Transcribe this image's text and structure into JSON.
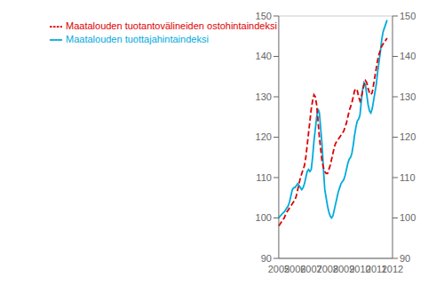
{
  "chart_data": {
    "type": "line",
    "categories": [
      "2005",
      null,
      null,
      null,
      null,
      null,
      null,
      null,
      null,
      null,
      null,
      null,
      "2006",
      null,
      null,
      null,
      null,
      null,
      null,
      null,
      null,
      null,
      null,
      null,
      "2007",
      null,
      null,
      null,
      null,
      null,
      null,
      null,
      null,
      null,
      null,
      null,
      "2008",
      null,
      null,
      null,
      null,
      null,
      null,
      null,
      null,
      null,
      null,
      null,
      "2009",
      null,
      null,
      null,
      null,
      null,
      null,
      null,
      null,
      null,
      null,
      null,
      "2010",
      null,
      null,
      null,
      null,
      null,
      null,
      null,
      null,
      null,
      null,
      null,
      "2011",
      null,
      null,
      null,
      null,
      null,
      null,
      null,
      null,
      null,
      null,
      null,
      "2012"
    ],
    "series": [
      {
        "name": "Maatalouden tuottajahintaindeksi",
        "color": "#00AADD",
        "line_style": "solid",
        "values": [
          100.0,
          100.5,
          100.8,
          101.2,
          101.5,
          102.0,
          102.5,
          103.0,
          104.0,
          105.5,
          107.0,
          107.5,
          107.5,
          108.0,
          108.5,
          108.0,
          107.5,
          107.0,
          107.5,
          108.5,
          110.0,
          111.5,
          112.0,
          111.5,
          112.0,
          115.0,
          119.0,
          122.0,
          125.0,
          127.0,
          126.0,
          122.0,
          118.0,
          112.0,
          107.0,
          105.0,
          103.0,
          101.5,
          100.5,
          100.0,
          100.5,
          102.0,
          103.5,
          105.0,
          106.5,
          107.5,
          108.5,
          109.0,
          109.5,
          110.5,
          112.0,
          113.5,
          114.5,
          115.0,
          116.0,
          118.0,
          120.5,
          122.5,
          124.0,
          124.5,
          125.5,
          129.0,
          132.0,
          133.5,
          133.0,
          130.5,
          128.0,
          126.5,
          126.0,
          127.0,
          129.0,
          131.0,
          133.0,
          136.0,
          138.5,
          141.0,
          144.0,
          146.0,
          147.0,
          148.0,
          149.0,
          null,
          null,
          null,
          null
        ]
      },
      {
        "name": "Maatalouden tuotantovälineiden ostohintaindeksi",
        "color": "#DD0000",
        "line_style": "dashed",
        "values": [
          98.0,
          98.5,
          99.0,
          99.5,
          100.0,
          100.8,
          101.5,
          102.0,
          102.5,
          103.0,
          103.5,
          104.0,
          104.5,
          105.5,
          107.0,
          108.5,
          110.0,
          111.0,
          112.0,
          113.0,
          115.0,
          118.0,
          121.0,
          124.0,
          127.0,
          129.0,
          130.5,
          130.0,
          128.0,
          124.0,
          120.0,
          117.0,
          114.0,
          112.5,
          111.5,
          111.0,
          111.0,
          112.0,
          113.0,
          114.5,
          116.0,
          117.5,
          118.5,
          119.0,
          119.5,
          120.0,
          120.5,
          121.0,
          121.5,
          122.5,
          123.5,
          125.0,
          126.5,
          127.5,
          128.5,
          130.0,
          131.5,
          132.0,
          131.5,
          130.0,
          129.0,
          130.0,
          131.5,
          133.0,
          134.0,
          133.5,
          132.0,
          131.0,
          130.5,
          131.0,
          133.0,
          135.0,
          137.0,
          139.0,
          140.5,
          141.5,
          142.5,
          143.0,
          143.5,
          144.0,
          144.5,
          null,
          null,
          null,
          null
        ]
      }
    ],
    "ylim": [
      90,
      150
    ],
    "yticks": [
      90,
      100,
      110,
      120,
      130,
      140,
      150
    ],
    "y2lim": [
      90,
      150
    ],
    "y2ticks": [
      90,
      100,
      110,
      120,
      130,
      140,
      150
    ],
    "grid": "y",
    "legend": "upper left"
  }
}
